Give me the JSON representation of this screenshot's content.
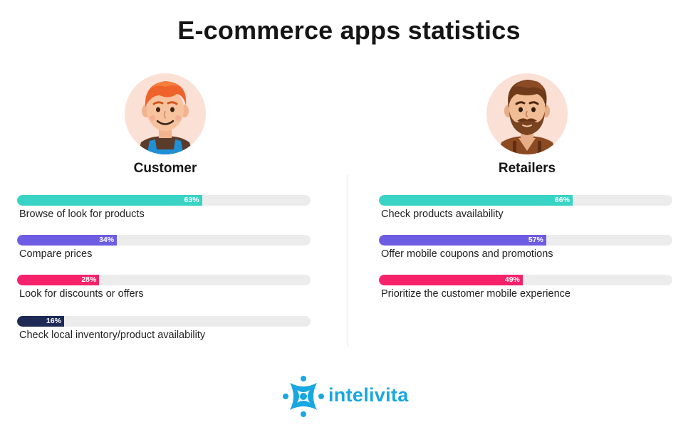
{
  "title": "E-commerce apps statistics",
  "colors": {
    "teal": "#38d3c4",
    "purple": "#6e5ce3",
    "pink": "#f5226a",
    "navy": "#1c2a55",
    "track": "#ececec",
    "brand_blue": "#18a7e0"
  },
  "chart_data": [
    {
      "type": "bar",
      "title": "Customer",
      "orientation": "horizontal",
      "xlim": [
        0,
        100
      ],
      "categories": [
        "Browse of look for products",
        "Compare prices",
        "Look for discounts or offers",
        "Check local inventory/product availability"
      ],
      "values": [
        63,
        34,
        28,
        16
      ],
      "value_labels": [
        "63%",
        "34%",
        "28%",
        "16%"
      ],
      "colors": [
        "#38d3c4",
        "#6e5ce3",
        "#f5226a",
        "#1c2a55"
      ]
    },
    {
      "type": "bar",
      "title": "Retailers",
      "orientation": "horizontal",
      "xlim": [
        0,
        100
      ],
      "categories": [
        "Check products availability",
        "Offer mobile coupons and promotions",
        "Prioritize the customer mobile experience"
      ],
      "values": [
        66,
        57,
        49
      ],
      "value_labels": [
        "66%",
        "57%",
        "49%"
      ],
      "colors": [
        "#38d3c4",
        "#6e5ce3",
        "#f5226a"
      ]
    }
  ],
  "logo": {
    "text": "intelivita",
    "icon": "intelivita-logo-icon"
  },
  "avatars": {
    "customer": "customer-avatar-icon",
    "retailer": "retailer-avatar-icon"
  }
}
